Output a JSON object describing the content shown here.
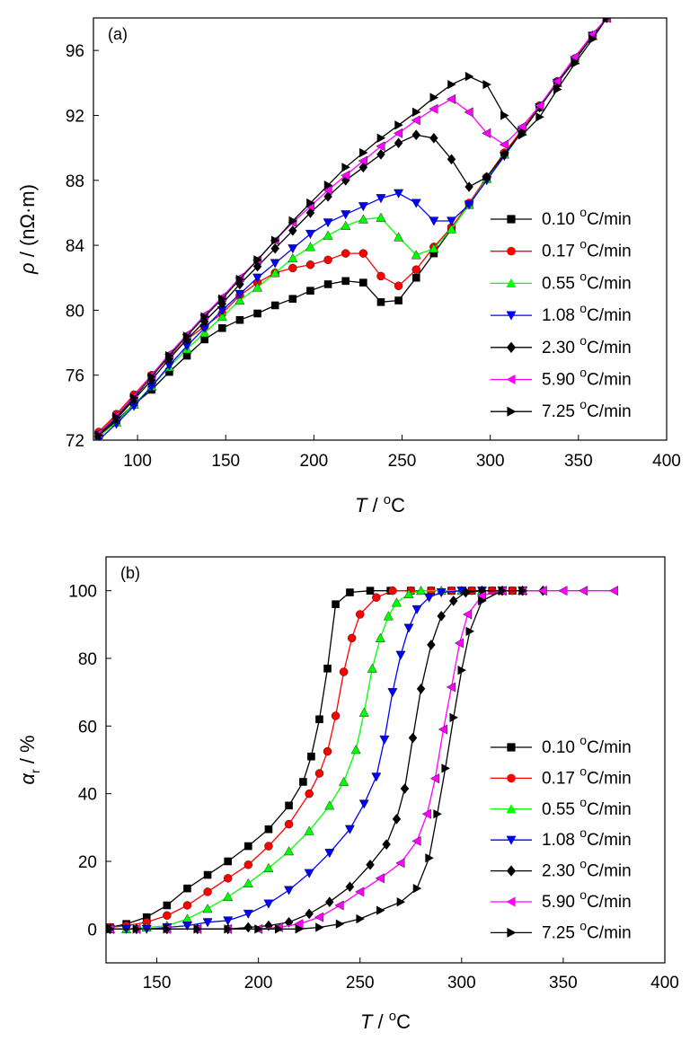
{
  "chart_data": [
    {
      "type": "line",
      "panel_label": "(a)",
      "xlabel": {
        "symbol": "T",
        "unit": "°C"
      },
      "ylabel": {
        "symbol": "ρ",
        "unit": "(nΩ·m)"
      },
      "xlim": [
        75,
        400
      ],
      "ylim": [
        72,
        98
      ],
      "xticks": [
        100,
        150,
        200,
        250,
        300,
        350,
        400
      ],
      "yticks": [
        72,
        76,
        80,
        84,
        88,
        92,
        96
      ],
      "legend_position": "right",
      "series": [
        {
          "name": "0.10 °C/min",
          "color": "#000000",
          "marker": "square",
          "x": [
            78,
            88,
            98,
            108,
            118,
            128,
            138,
            148,
            158,
            168,
            178,
            188,
            198,
            208,
            218,
            228,
            238,
            248,
            258,
            268,
            278,
            288,
            298,
            308,
            318,
            328,
            338,
            348,
            358,
            366
          ],
          "y": [
            72.2,
            73.2,
            74.2,
            75.1,
            76.2,
            77.2,
            78.2,
            78.9,
            79.4,
            79.8,
            80.3,
            80.7,
            81.2,
            81.6,
            81.8,
            81.7,
            80.5,
            80.6,
            82.0,
            83.5,
            85.0,
            86.5,
            88.1,
            89.6,
            91.0,
            92.5,
            94.0,
            95.4,
            96.9,
            98.0
          ]
        },
        {
          "name": "0.17 °C/min",
          "color": "#ff0000",
          "marker": "circle",
          "x": [
            78,
            88,
            98,
            108,
            118,
            128,
            138,
            148,
            158,
            168,
            178,
            188,
            198,
            208,
            218,
            228,
            238,
            248,
            258,
            268,
            278,
            288,
            298,
            308,
            318,
            328,
            338,
            348,
            358,
            366
          ],
          "y": [
            72.5,
            73.6,
            74.8,
            76.0,
            77.1,
            78.2,
            79.0,
            79.8,
            80.9,
            81.7,
            82.3,
            82.6,
            82.8,
            83.1,
            83.5,
            83.5,
            82.1,
            81.5,
            82.5,
            83.9,
            85.1,
            86.6,
            88.2,
            89.7,
            91.1,
            92.6,
            94.1,
            95.5,
            96.9,
            98.0
          ]
        },
        {
          "name": "0.55 °C/min",
          "color": "#00ff00",
          "marker": "triangle-up",
          "x": [
            78,
            88,
            98,
            108,
            118,
            128,
            138,
            148,
            158,
            168,
            178,
            188,
            198,
            208,
            218,
            228,
            238,
            248,
            258,
            268,
            278,
            288,
            298,
            308,
            318,
            328,
            338,
            348,
            358,
            366
          ],
          "y": [
            72.2,
            73.1,
            74.2,
            75.3,
            76.5,
            77.6,
            78.6,
            79.6,
            80.6,
            81.4,
            82.3,
            83.2,
            83.9,
            84.6,
            85.2,
            85.6,
            85.7,
            84.5,
            83.4,
            83.8,
            85.0,
            86.5,
            88.1,
            89.6,
            91.0,
            92.5,
            94.0,
            95.4,
            96.9,
            98.0
          ]
        },
        {
          "name": "1.08 °C/min",
          "color": "#0000ff",
          "marker": "triangle-down",
          "x": [
            78,
            88,
            98,
            108,
            118,
            128,
            138,
            148,
            158,
            168,
            178,
            188,
            198,
            208,
            218,
            228,
            238,
            248,
            258,
            268,
            278,
            288,
            298,
            308,
            318,
            328,
            338,
            348,
            358,
            366
          ],
          "y": [
            72.0,
            73.0,
            74.1,
            75.3,
            76.6,
            77.8,
            78.9,
            80.0,
            81.0,
            82.0,
            82.9,
            83.8,
            84.7,
            85.4,
            85.9,
            86.4,
            86.9,
            87.2,
            86.6,
            85.5,
            85.5,
            86.5,
            88.0,
            89.5,
            91.0,
            92.5,
            94.0,
            95.4,
            96.9,
            98.0
          ]
        },
        {
          "name": "2.30 °C/min",
          "color": "#000000",
          "marker": "diamond",
          "x": [
            78,
            88,
            98,
            108,
            118,
            128,
            138,
            148,
            158,
            168,
            178,
            188,
            198,
            208,
            218,
            228,
            238,
            248,
            258,
            268,
            278,
            288,
            298,
            308,
            318,
            328,
            338,
            348,
            358,
            366
          ],
          "y": [
            72.3,
            73.3,
            74.5,
            75.7,
            77.0,
            78.2,
            79.3,
            80.4,
            81.6,
            82.7,
            83.8,
            84.9,
            86.0,
            87.0,
            88.0,
            88.8,
            89.6,
            90.3,
            90.8,
            90.6,
            89.3,
            87.6,
            88.2,
            89.6,
            91.0,
            92.5,
            94.0,
            95.4,
            96.9,
            98.0
          ]
        },
        {
          "name": "5.90 °C/min",
          "color": "#ff00ff",
          "marker": "triangle-left",
          "x": [
            78,
            88,
            98,
            108,
            118,
            128,
            138,
            148,
            158,
            168,
            178,
            188,
            198,
            208,
            218,
            228,
            238,
            248,
            258,
            268,
            278,
            288,
            298,
            308,
            318,
            328,
            338,
            348,
            358,
            366
          ],
          "y": [
            72.4,
            73.5,
            74.7,
            76.0,
            77.3,
            78.5,
            79.7,
            80.8,
            82.0,
            83.1,
            84.3,
            85.4,
            86.4,
            87.4,
            88.3,
            89.2,
            90.1,
            90.9,
            91.7,
            92.4,
            93.0,
            92.2,
            90.9,
            90.2,
            91.3,
            92.6,
            94.1,
            95.6,
            97.0,
            98.0
          ]
        },
        {
          "name": "7.25 °C/min",
          "color": "#000000",
          "marker": "triangle-right",
          "x": [
            78,
            88,
            98,
            108,
            118,
            128,
            138,
            148,
            158,
            168,
            178,
            188,
            198,
            208,
            218,
            228,
            238,
            248,
            258,
            268,
            278,
            288,
            298,
            308,
            318,
            328,
            338,
            348,
            358,
            366
          ],
          "y": [
            72.3,
            73.4,
            74.6,
            75.9,
            77.2,
            78.4,
            79.6,
            80.7,
            81.9,
            83.1,
            84.3,
            85.5,
            86.6,
            87.7,
            88.8,
            89.7,
            90.6,
            91.4,
            92.2,
            93.1,
            93.9,
            94.4,
            93.9,
            92.0,
            90.8,
            91.9,
            93.6,
            95.2,
            96.7,
            98.0
          ]
        }
      ]
    },
    {
      "type": "line",
      "panel_label": "(b)",
      "xlabel": {
        "symbol": "T",
        "unit": "°C"
      },
      "ylabel": {
        "symbol": "α",
        "subscript": "r",
        "unit": "%"
      },
      "xlim": [
        125,
        400
      ],
      "ylim": [
        -10,
        110
      ],
      "xticks": [
        150,
        200,
        250,
        300,
        350,
        400
      ],
      "yticks": [
        0,
        20,
        40,
        60,
        80,
        100
      ],
      "legend_position": "right",
      "series": [
        {
          "name": "0.10 °C/min",
          "color": "#000000",
          "marker": "square",
          "x": [
            127,
            135,
            145,
            155,
            165,
            175,
            185,
            195,
            205,
            215,
            222,
            226,
            230,
            234,
            238,
            245,
            255,
            265,
            275,
            285,
            295,
            305,
            315,
            325
          ],
          "y": [
            0.5,
            1.5,
            3.5,
            7,
            12,
            16,
            20,
            24.5,
            29.5,
            36.5,
            43.5,
            51,
            62,
            77,
            96,
            99.5,
            100,
            100,
            100,
            100,
            100,
            100,
            100,
            100
          ]
        },
        {
          "name": "0.17 °C/min",
          "color": "#ff0000",
          "marker": "circle",
          "x": [
            127,
            135,
            145,
            155,
            165,
            175,
            185,
            195,
            205,
            215,
            225,
            230,
            234,
            238,
            242,
            246,
            250,
            258,
            266,
            275,
            285,
            295,
            305,
            315,
            325
          ],
          "y": [
            0.5,
            1,
            2,
            4,
            7,
            11,
            15,
            19,
            24.5,
            31,
            40,
            46,
            52.5,
            63,
            76,
            86,
            93,
            98,
            100,
            100,
            100,
            100,
            100,
            100,
            100
          ]
        },
        {
          "name": "0.55 °C/min",
          "color": "#00ff00",
          "marker": "triangle-up",
          "x": [
            127,
            135,
            145,
            155,
            165,
            175,
            185,
            195,
            205,
            215,
            225,
            235,
            242,
            248,
            252,
            256,
            260,
            264,
            268,
            274,
            280,
            290,
            300,
            310,
            320,
            330
          ],
          "y": [
            0,
            0,
            0.5,
            1,
            3,
            6,
            9.5,
            13.5,
            18,
            23,
            29,
            36.5,
            43.5,
            53,
            64,
            77,
            86,
            92.5,
            96.5,
            99,
            100,
            100,
            100,
            100,
            100,
            100
          ]
        },
        {
          "name": "1.08 °C/min",
          "color": "#0000ff",
          "marker": "triangle-down",
          "x": [
            127,
            135,
            145,
            155,
            165,
            175,
            185,
            195,
            205,
            215,
            225,
            235,
            245,
            252,
            258,
            262,
            266,
            270,
            274,
            278,
            284,
            290,
            300,
            310,
            320,
            330
          ],
          "y": [
            0,
            0,
            0,
            0.5,
            1,
            2,
            2.5,
            4.5,
            7.5,
            11.5,
            16.5,
            22.5,
            29.5,
            37,
            45,
            56,
            70,
            81,
            89,
            94.5,
            98,
            99.5,
            100,
            100,
            100,
            100
          ]
        },
        {
          "name": "2.30 °C/min",
          "color": "#000000",
          "marker": "diamond",
          "x": [
            127,
            140,
            155,
            170,
            185,
            195,
            205,
            215,
            225,
            235,
            245,
            255,
            263,
            268,
            272,
            276,
            280,
            285,
            290,
            296,
            302,
            310,
            320,
            330,
            340
          ],
          "y": [
            0,
            0,
            0,
            0,
            0,
            0.5,
            1,
            2,
            4.5,
            8,
            12.5,
            19,
            25,
            32.5,
            41.5,
            56.5,
            71,
            84,
            92.5,
            97,
            99.5,
            100,
            100,
            100,
            100
          ]
        },
        {
          "name": "5.90 °C/min",
          "color": "#ff00ff",
          "marker": "triangle-left",
          "x": [
            127,
            140,
            155,
            170,
            185,
            200,
            210,
            220,
            230,
            240,
            250,
            260,
            270,
            278,
            283,
            287,
            291,
            295,
            299,
            303,
            310,
            320,
            330,
            340,
            350,
            360,
            375
          ],
          "y": [
            0,
            0,
            0,
            0,
            0,
            0,
            0.5,
            1.5,
            3.5,
            7,
            11,
            15,
            19.5,
            26,
            34,
            44.5,
            59,
            71.5,
            84.5,
            93,
            98.5,
            100,
            100,
            100,
            100,
            100,
            100
          ]
        },
        {
          "name": "7.25 °C/min",
          "color": "#000000",
          "marker": "triangle-right",
          "x": [
            127,
            140,
            155,
            170,
            185,
            200,
            210,
            220,
            230,
            240,
            250,
            260,
            270,
            278,
            284,
            288,
            292,
            296,
            300,
            304,
            310,
            320,
            330
          ],
          "y": [
            0,
            0,
            0,
            0,
            0,
            0,
            0,
            0,
            0.5,
            1.5,
            3,
            5.5,
            8,
            12,
            21,
            34,
            47.5,
            62.5,
            76.5,
            88,
            97,
            100,
            100
          ]
        }
      ]
    }
  ]
}
